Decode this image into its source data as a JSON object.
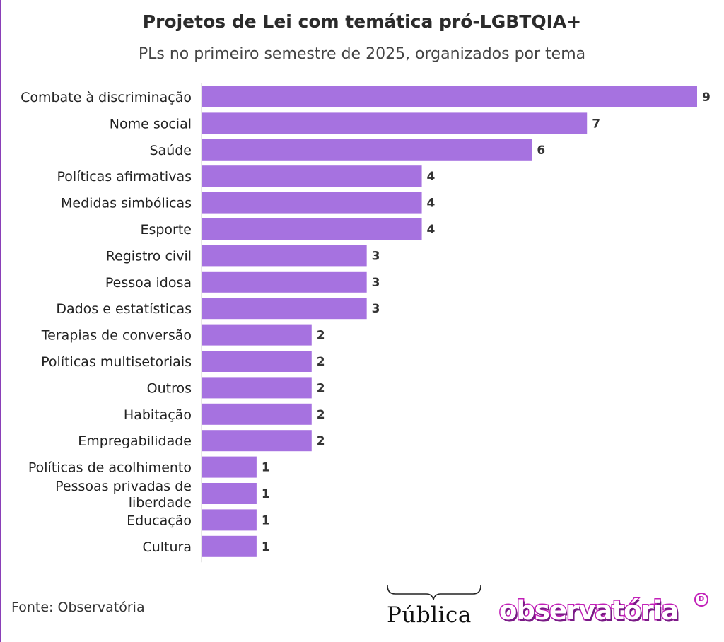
{
  "header": {
    "title": "Projetos de Lei com temática pró-LGBTQIA+",
    "subtitle": "PLs no primeiro semestre de 2025, organizados por tema"
  },
  "colors": {
    "bar": "#a672e0",
    "frame": "#8a3fb8",
    "axis": "#cfcfcf"
  },
  "chart_data": {
    "type": "bar",
    "orientation": "horizontal",
    "title": "Projetos de Lei com temática pró-LGBTQIA+",
    "subtitle": "PLs no primeiro semestre de 2025, organizados por tema",
    "categories": [
      "Combate à discriminação",
      "Nome social",
      "Saúde",
      "Políticas afirmativas",
      "Medidas simbólicas",
      "Esporte",
      "Registro civil",
      "Pessoa idosa",
      "Dados e estatísticas",
      "Terapias de conversão",
      "Políticas multisetoriais",
      "Outros",
      "Habitação",
      "Empregabilidade",
      "Políticas de acolhimento",
      "Pessoas privadas de liberdade",
      "Educação",
      "Cultura"
    ],
    "values": [
      9,
      7,
      6,
      4,
      4,
      4,
      3,
      3,
      3,
      2,
      2,
      2,
      2,
      2,
      1,
      1,
      1,
      1
    ],
    "xlim": [
      0,
      9
    ],
    "grid": false,
    "legend": "none",
    "data_labels": true
  },
  "footer": {
    "source": "Fonte: Observatória",
    "logos": [
      {
        "name": "Pública",
        "text": "Pública"
      },
      {
        "name": "observatória",
        "text": "observatória"
      }
    ]
  }
}
